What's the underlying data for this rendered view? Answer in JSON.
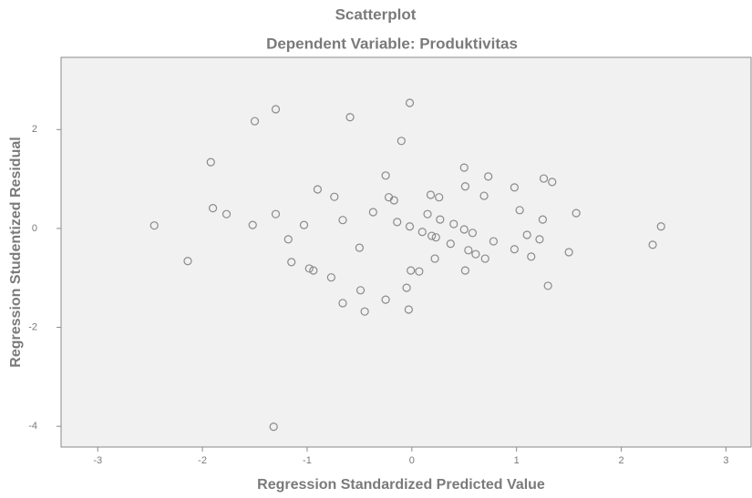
{
  "chart_data": {
    "type": "scatter",
    "title": "Scatterplot",
    "subtitle": "Dependent Variable: Produktivitas",
    "x_label": "Regression Standardized Predicted Value",
    "y_label": "Regression Studentized Residual",
    "color": "#8a8a8a",
    "x": [
      -2.46,
      -2.14,
      -1.92,
      -1.9,
      -1.77,
      -1.5,
      -1.52,
      -1.3,
      -1.3,
      -1.18,
      -1.15,
      -1.32,
      -1.03,
      -0.98,
      -0.94,
      -0.9,
      -0.77,
      -0.74,
      -0.66,
      -0.66,
      -0.59,
      -0.5,
      -0.49,
      -0.45,
      -0.37,
      -0.25,
      -0.25,
      -0.22,
      -0.17,
      -0.14,
      -0.1,
      -0.05,
      -0.02,
      -0.02,
      -0.01,
      -0.03,
      0.07,
      0.1,
      0.15,
      0.18,
      0.19,
      0.23,
      0.22,
      0.26,
      0.27,
      0.37,
      0.4,
      0.5,
      0.51,
      0.5,
      0.51,
      0.54,
      0.58,
      0.61,
      0.69,
      0.7,
      0.73,
      0.78,
      0.98,
      0.98,
      1.03,
      1.1,
      1.14,
      1.22,
      1.25,
      1.26,
      1.3,
      1.34,
      1.5,
      1.57,
      2.3,
      2.38
    ],
    "values": [
      0.06,
      -0.66,
      1.34,
      0.41,
      0.29,
      2.17,
      0.07,
      2.41,
      0.29,
      -0.22,
      -0.68,
      -4.01,
      0.07,
      -0.81,
      -0.85,
      0.79,
      -0.99,
      0.64,
      0.17,
      -1.51,
      2.25,
      -0.39,
      -1.25,
      -1.68,
      0.33,
      -1.44,
      1.07,
      0.63,
      0.57,
      0.13,
      1.77,
      -1.2,
      2.54,
      0.04,
      -0.85,
      -1.64,
      -0.87,
      -0.07,
      0.29,
      0.68,
      -0.15,
      -0.18,
      -0.61,
      0.63,
      0.18,
      -0.31,
      0.09,
      1.23,
      0.85,
      -0.02,
      -0.85,
      -0.44,
      -0.09,
      -0.52,
      0.66,
      -0.61,
      1.05,
      -0.26,
      0.83,
      -0.42,
      0.37,
      -0.13,
      -0.57,
      -0.22,
      0.18,
      1.01,
      -1.16,
      0.94,
      -0.48,
      0.31,
      -0.33,
      0.04
    ],
    "xlim": [
      -3.35,
      3.24
    ],
    "ylim": [
      -4.42,
      3.46
    ],
    "xticks": [
      -3,
      -2,
      -1,
      0,
      1,
      2,
      3
    ],
    "yticks": [
      -4,
      -2,
      0,
      2
    ]
  }
}
